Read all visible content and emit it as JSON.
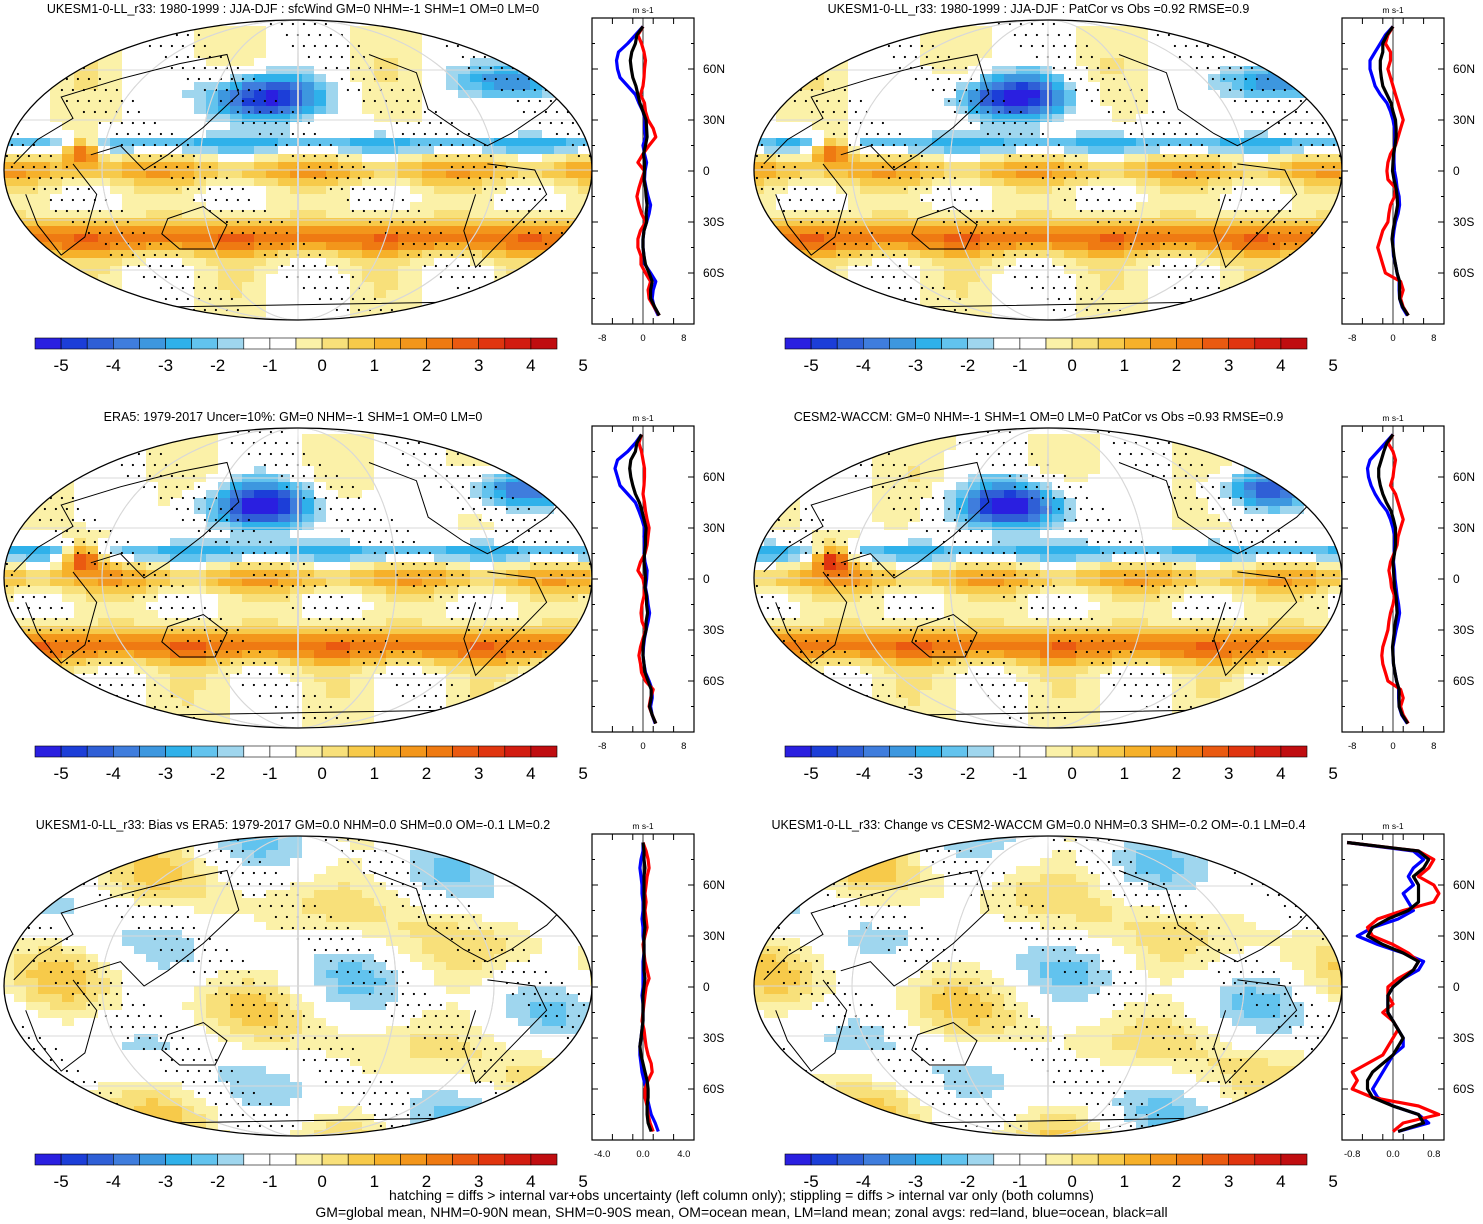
{
  "colorbar": {
    "colors": [
      "#2a1fe0",
      "#1c3ed8",
      "#2f5fd6",
      "#3f7ddd",
      "#3d97df",
      "#2fb1ea",
      "#62c3ee",
      "#9fd6ee",
      "#ffffff",
      "#ffffff",
      "#fbf1a8",
      "#f8e07a",
      "#f7ca4a",
      "#f6b12a",
      "#f3961b",
      "#ef7a12",
      "#ea5a11",
      "#e0350f",
      "#d21c10",
      "#c00d10"
    ],
    "labels": [
      "-5",
      "-4",
      "-3",
      "-2",
      "-1",
      "0",
      "1",
      "2",
      "3",
      "4",
      "5"
    ]
  },
  "profile_colors": {
    "land": "#ff0000",
    "ocean": "#0000ff",
    "all": "#000000"
  },
  "unit": "m s-1",
  "lat_labels": [
    "60N",
    "30N",
    "0",
    "30S",
    "60S"
  ],
  "footer": {
    "line1": "hatching = diffs > internal var+obs uncertainty (left column only); stippling = diffs > internal var only (both columns)",
    "line2": "GM=global mean, NHM=0-90N mean, SHM=0-90S mean, OM=ocean mean, LM=land mean; zonal avgs: red=land, blue=ocean, black=all"
  },
  "chart_data": [
    {
      "type": "heatmap",
      "title": "UKESM1-0-LL_r33: 1980-1999 : JJA-DJF : sfcWind GM=0 NHM=-1 SHM=1 OM=0 LM=0",
      "profile": {
        "xticks": [
          "-8",
          "0",
          "8"
        ],
        "xlim": [
          -10,
          10
        ],
        "lat": [
          85,
          80,
          75,
          70,
          65,
          60,
          55,
          50,
          45,
          40,
          35,
          30,
          25,
          20,
          15,
          10,
          5,
          0,
          -5,
          -10,
          -15,
          -20,
          -25,
          -30,
          -35,
          -40,
          -45,
          -50,
          -55,
          -60,
          -65,
          -70,
          -75,
          -80,
          -85
        ],
        "land": [
          0,
          -1,
          -0.3,
          0.2,
          0.5,
          0.3,
          0.2,
          0,
          -0.5,
          0.3,
          0.5,
          1,
          2,
          2.5,
          1.2,
          0,
          -1,
          0.3,
          -0.3,
          -0.8,
          -1.2,
          -0.8,
          -0.3,
          0.5,
          -0.5,
          -1,
          -1,
          -0.4,
          -0.4,
          0.5,
          1.5,
          1,
          1.2,
          2.2,
          3.2
        ],
        "ocean": [
          0,
          -1.5,
          -3,
          -4.8,
          -5.2,
          -5,
          -4.5,
          -3,
          -1.5,
          -0.8,
          0,
          0.4,
          0.3,
          0.5,
          0,
          0.3,
          0.7,
          0.4,
          0.3,
          0.6,
          1,
          1.5,
          1.2,
          0.7,
          0.2,
          0,
          0,
          0.2,
          0.4,
          1.5,
          2.5,
          2,
          1.8,
          2.2,
          3
        ],
        "all": [
          0,
          -1.2,
          -1.5,
          -2.2,
          -2.5,
          -2.3,
          -2,
          -1.4,
          -1,
          -0.6,
          0,
          0.6,
          0.7,
          0.8,
          0.5,
          0.1,
          0.3,
          0.3,
          0.2,
          0.5,
          0.6,
          0.8,
          0.6,
          0.7,
          0.2,
          0,
          0,
          0.2,
          0.5,
          1.2,
          1.8,
          1.5,
          1.5,
          2.3,
          3.2
        ]
      }
    },
    {
      "type": "heatmap",
      "title": "UKESM1-0-LL_r33: 1980-1999 : JJA-DJF : PatCor vs Obs =0.92 RMSE=0.9",
      "profile": {
        "xticks": [
          "-8",
          "0",
          "8"
        ],
        "xlim": [
          -10,
          10
        ],
        "lat": [
          85,
          80,
          75,
          70,
          65,
          60,
          55,
          50,
          45,
          40,
          35,
          30,
          25,
          20,
          15,
          10,
          5,
          0,
          -5,
          -10,
          -15,
          -20,
          -25,
          -30,
          -35,
          -40,
          -45,
          -50,
          -55,
          -60,
          -65,
          -70,
          -75,
          -80,
          -85
        ],
        "land": [
          0,
          -1,
          -1.5,
          -0.5,
          -0.5,
          -1,
          -0.5,
          0,
          0.5,
          1,
          1.5,
          2,
          1.5,
          1,
          0.5,
          -0.5,
          -1,
          -1.2,
          -1,
          0.5,
          0.3,
          -0.5,
          -0.8,
          -1,
          -2,
          -2.5,
          -3,
          -2.5,
          -2,
          -1.5,
          1.5,
          2,
          1.5,
          2,
          3
        ],
        "ocean": [
          0,
          -1.5,
          -2.5,
          -3.5,
          -4.5,
          -4.5,
          -4,
          -3.5,
          -2.5,
          -1.2,
          -0.5,
          0,
          0.3,
          0.4,
          0.3,
          0.2,
          0.2,
          0.3,
          0.6,
          0.8,
          1.2,
          1.3,
          1,
          0.5,
          0.2,
          0,
          0,
          0.1,
          0.5,
          0.8,
          1.2,
          1.2,
          1.3,
          1.8,
          2.8
        ],
        "all": [
          0,
          -1.2,
          -2,
          -2,
          -2.5,
          -2.5,
          -2.3,
          -2,
          -1.2,
          -0.4,
          0,
          0.5,
          0.6,
          0.6,
          0.4,
          0.1,
          0,
          -0.1,
          0.2,
          0.6,
          0.8,
          0.9,
          0.6,
          0.3,
          0,
          -0.2,
          0,
          0.2,
          0.5,
          0.8,
          1.3,
          1.3,
          1.3,
          1.9,
          3
        ]
      }
    },
    {
      "type": "heatmap",
      "title": "ERA5: 1979-2017 Uncer=10%: GM=0 NHM=-1 SHM=1 OM=0 LM=0",
      "profile": {
        "xticks": [
          "-8",
          "0",
          "8"
        ],
        "xlim": [
          -10,
          10
        ],
        "lat": [
          85,
          80,
          75,
          70,
          65,
          60,
          55,
          50,
          45,
          40,
          35,
          30,
          25,
          20,
          15,
          10,
          5,
          0,
          -5,
          -10,
          -15,
          -20,
          -25,
          -30,
          -35,
          -40,
          -45,
          -50,
          -55,
          -60,
          -65,
          -70,
          -75,
          -80,
          -85
        ],
        "land": [
          -0.3,
          -0.8,
          -0.3,
          0,
          0.3,
          0.3,
          0.2,
          0,
          0.3,
          0.5,
          0.8,
          1.2,
          1,
          0.8,
          0.4,
          -0.5,
          -1,
          0,
          0.3,
          0.2,
          -0.2,
          -0.4,
          -0.2,
          0.5,
          0,
          -0.5,
          -0.8,
          -0.5,
          -0.3,
          0.5,
          2,
          1.5,
          1.2,
          1.8,
          2.5
        ],
        "ocean": [
          -0.3,
          -1.5,
          -3,
          -5,
          -5.5,
          -5,
          -4.5,
          -3,
          -1.5,
          -0.8,
          -0.2,
          0.3,
          0.2,
          0.3,
          0.2,
          0.4,
          0.8,
          0.7,
          0.5,
          0.8,
          1,
          1.3,
          1,
          0.6,
          0.3,
          0.1,
          0,
          0.2,
          0.5,
          1.2,
          1.8,
          1.8,
          1.5,
          1.8,
          2.4
        ],
        "all": [
          -0.3,
          -1.2,
          -1.5,
          -2.4,
          -2.6,
          -2.4,
          -2,
          -1.5,
          -0.7,
          -0.2,
          0.2,
          0.6,
          0.5,
          0.5,
          0.3,
          0.2,
          0.4,
          0.5,
          0.4,
          0.7,
          0.7,
          0.9,
          0.6,
          0.6,
          0.2,
          0,
          0,
          0.2,
          0.4,
          1,
          1.6,
          1.6,
          1.3,
          1.8,
          2.5
        ]
      }
    },
    {
      "type": "heatmap",
      "title": "CESM2-WACCM: GM=0 NHM=-1 SHM=1 OM=0 LM=0 PatCor vs Obs =0.93 RMSE=0.9",
      "profile": {
        "xticks": [
          "-8",
          "0",
          "8"
        ],
        "xlim": [
          -10,
          10
        ],
        "lat": [
          85,
          80,
          75,
          70,
          65,
          60,
          55,
          50,
          45,
          40,
          35,
          30,
          25,
          20,
          15,
          10,
          5,
          0,
          -5,
          -10,
          -15,
          -20,
          -25,
          -30,
          -35,
          -40,
          -45,
          -50,
          -55,
          -60,
          -65,
          -70,
          -75,
          -80,
          -85
        ],
        "land": [
          0,
          -1,
          0,
          0.5,
          0.2,
          0,
          -0.5,
          0.5,
          1,
          1.5,
          2,
          1.5,
          1,
          0.8,
          0.2,
          -0.5,
          -0.8,
          -0.5,
          -0.3,
          0.3,
          0,
          -0.5,
          -0.8,
          -1,
          -1.5,
          -2,
          -2.2,
          -2,
          -1.5,
          -1,
          1.5,
          2,
          1.5,
          2,
          3
        ],
        "ocean": [
          0,
          -1.5,
          -3,
          -4.5,
          -5,
          -4.8,
          -4.3,
          -3.5,
          -2.5,
          -1.2,
          -0.5,
          0,
          0.3,
          0.3,
          0.2,
          0.1,
          0.3,
          0.4,
          0.6,
          0.8,
          1.1,
          1.3,
          1,
          0.6,
          0.3,
          0,
          0,
          0.1,
          0.4,
          0.7,
          1.1,
          1.1,
          1.2,
          1.7,
          2.8
        ],
        "all": [
          0,
          -1.2,
          -1.8,
          -2.3,
          -2.8,
          -2.8,
          -2.5,
          -2,
          -1.3,
          -0.4,
          0.1,
          0.5,
          0.5,
          0.5,
          0.3,
          0,
          0.1,
          0.2,
          0.3,
          0.6,
          0.7,
          0.8,
          0.5,
          0.3,
          0.1,
          -0.1,
          0,
          0.1,
          0.4,
          0.7,
          1.2,
          1.2,
          1.2,
          1.8,
          2.9
        ]
      }
    },
    {
      "type": "heatmap",
      "title": "UKESM1-0-LL_r33: Bias vs ERA5: 1979-2017 GM=0.0 NHM=0.0 SHM=0.0 OM=-0.1 LM=0.2",
      "profile": {
        "xticks": [
          "-4.0",
          "0.0",
          "4.0"
        ],
        "xlim": [
          -5,
          5
        ],
        "lat": [
          85,
          80,
          75,
          70,
          65,
          60,
          55,
          50,
          45,
          40,
          35,
          30,
          25,
          20,
          15,
          10,
          5,
          0,
          -5,
          -10,
          -15,
          -20,
          -25,
          -30,
          -35,
          -40,
          -45,
          -50,
          -55,
          -60,
          -65,
          -70,
          -75,
          -80,
          -85
        ],
        "land": [
          0,
          0.3,
          0.5,
          0.6,
          0.4,
          0.3,
          0.2,
          0.3,
          0.2,
          0.3,
          0.4,
          0.2,
          0,
          0.1,
          0.2,
          0.4,
          0.6,
          0.3,
          0.2,
          0.1,
          0,
          -0.1,
          0.1,
          0.2,
          0.3,
          0.5,
          0.8,
          0.9,
          0.5,
          0.2,
          0.2,
          0.4,
          0.5,
          0.7,
          1
        ],
        "ocean": [
          0,
          0,
          -0.2,
          -0.3,
          -0.2,
          -0.1,
          -0.1,
          0,
          0,
          -0.1,
          0,
          0,
          0.1,
          0.1,
          0,
          0,
          0,
          0,
          -0.1,
          0,
          0,
          0,
          -0.1,
          -0.2,
          -0.3,
          -0.3,
          -0.2,
          -0.1,
          0.1,
          0.3,
          0.4,
          0.6,
          0.8,
          1.2,
          1.5
        ],
        "all": [
          0,
          0.1,
          0.1,
          0.2,
          0.1,
          0.1,
          0.1,
          0.1,
          0.1,
          0.1,
          0.2,
          0.1,
          0.1,
          0.1,
          0.1,
          0.1,
          0.2,
          0.1,
          0,
          0,
          0,
          0,
          -0.1,
          -0.2,
          -0.3,
          -0.2,
          0,
          0.2,
          0.4,
          0.5,
          0.5,
          0.4,
          0.4,
          0.5,
          0.8
        ]
      }
    },
    {
      "type": "heatmap",
      "title": "UKESM1-0-LL_r33: Change vs CESM2-WACCM GM=0.0 NHM=0.3 SHM=-0.2 OM=-0.1 LM=0.4",
      "profile": {
        "xticks": [
          "-0.8",
          "0.0",
          "0.8"
        ],
        "xlim": [
          -1.0,
          1.0
        ],
        "lat": [
          85,
          80,
          75,
          70,
          65,
          60,
          55,
          50,
          45,
          40,
          35,
          30,
          25,
          20,
          15,
          10,
          5,
          0,
          -5,
          -10,
          -15,
          -20,
          -25,
          -30,
          -35,
          -40,
          -45,
          -50,
          -55,
          -60,
          -65,
          -70,
          -75,
          -80,
          -85
        ],
        "land": [
          -0.9,
          0.5,
          0.8,
          0.7,
          0.5,
          0.8,
          0.9,
          0.8,
          0.2,
          -0.3,
          -0.5,
          -0.4,
          0,
          0.3,
          0.5,
          0.4,
          0.1,
          -0.1,
          -0.1,
          0,
          -0.2,
          0,
          0.1,
          0,
          -0.1,
          -0.2,
          -0.5,
          -0.8,
          -0.7,
          -0.8,
          -0.4,
          0.5,
          0.9,
          0.2,
          0
        ],
        "ocean": [
          -0.9,
          0.4,
          0.6,
          0.4,
          0.3,
          0.4,
          0.2,
          0.3,
          0.4,
          0.1,
          -0.4,
          -0.7,
          -0.3,
          0.2,
          0.6,
          0.5,
          0.2,
          0,
          -0.1,
          -0.1,
          -0.1,
          0,
          0.1,
          0.2,
          0.2,
          0,
          -0.1,
          -0.2,
          -0.3,
          -0.4,
          -0.3,
          0,
          0.5,
          0.7,
          0.1
        ],
        "all": [
          -0.9,
          0.5,
          0.7,
          0.6,
          0.4,
          0.5,
          0.5,
          0.5,
          0.3,
          -0.1,
          -0.4,
          -0.5,
          -0.2,
          0.2,
          0.5,
          0.4,
          0.2,
          0,
          -0.1,
          -0.1,
          -0.1,
          0,
          0.1,
          0.2,
          0.1,
          0,
          -0.2,
          -0.4,
          -0.5,
          -0.5,
          -0.4,
          0,
          0.5,
          0.6,
          0.1
        ]
      }
    }
  ]
}
